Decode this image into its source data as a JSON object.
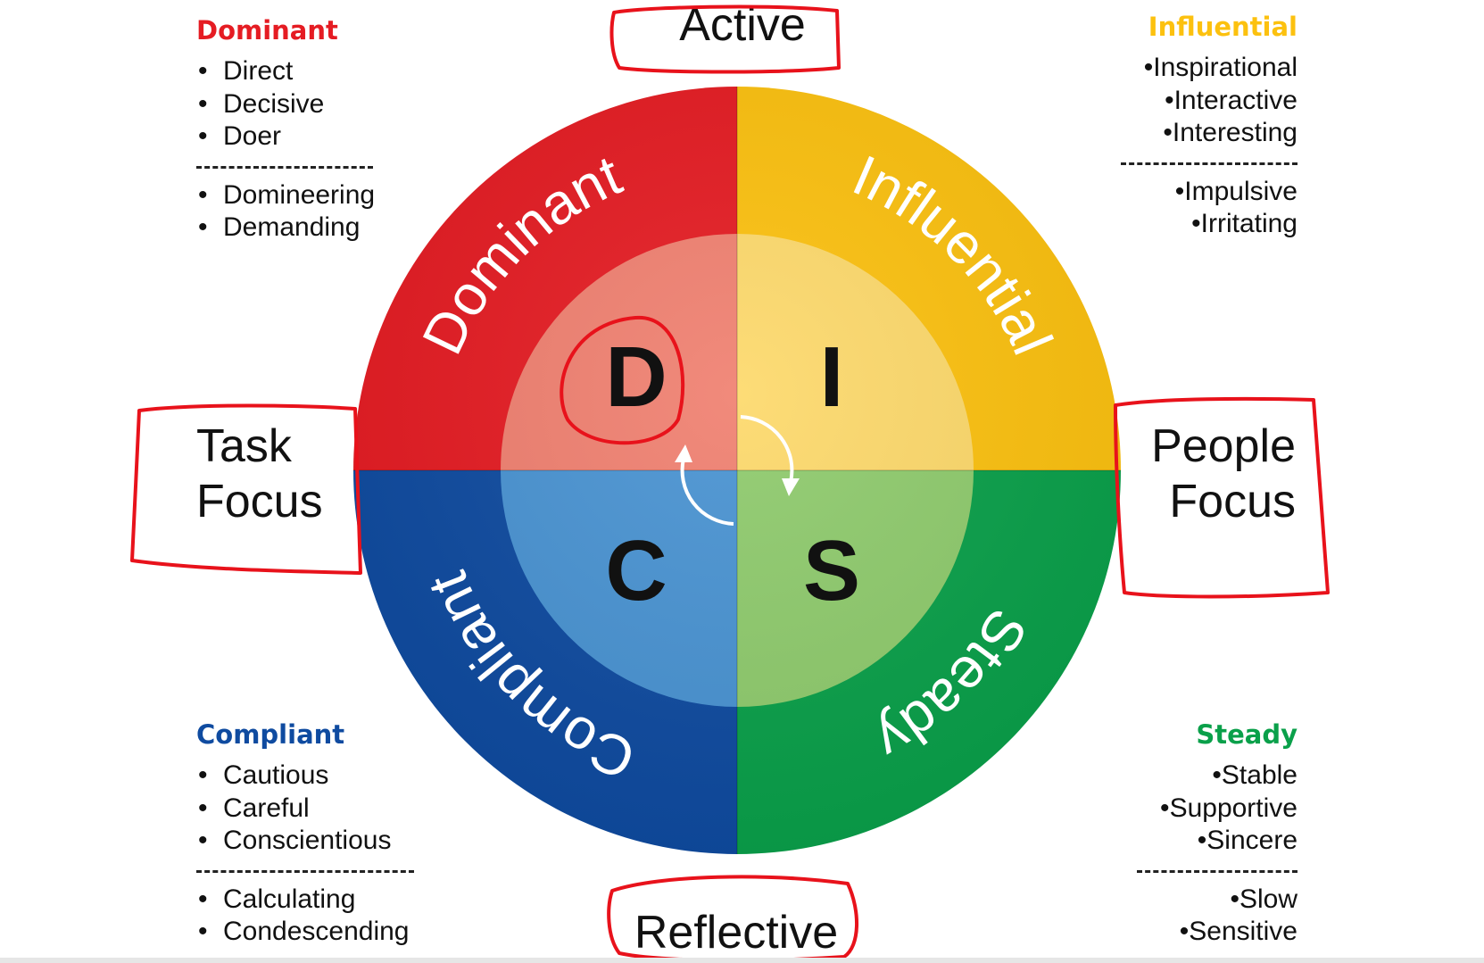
{
  "diagram": {
    "axis_labels": {
      "top": "Active",
      "bottom": "Reflective",
      "left": [
        "Task",
        "Focus"
      ],
      "right": [
        "People",
        "Focus"
      ]
    },
    "quadrants": [
      {
        "key": "d",
        "name": "Dominant",
        "letter": "D",
        "outer_color": "#e51c23",
        "inner_color": "#f08070"
      },
      {
        "key": "i",
        "name": "Influential",
        "letter": "I",
        "outer_color": "#fcc10f",
        "inner_color": "#fdd96b"
      },
      {
        "key": "s",
        "name": "Steady",
        "letter": "S",
        "outer_color": "#0aa04a",
        "inner_color": "#8fcb6d"
      },
      {
        "key": "c",
        "name": "Compliant",
        "letter": "C",
        "outer_color": "#0f4ba0",
        "inner_color": "#4993d2"
      }
    ],
    "panels": {
      "dominant": {
        "title": "Dominant",
        "color": "#e51c23",
        "strengths": [
          "Direct",
          "Decisive",
          "Doer"
        ],
        "weaknesses": [
          "Domineering",
          "Demanding"
        ]
      },
      "influential": {
        "title": "Influential",
        "color": "#fcc10f",
        "strengths": [
          "Inspirational",
          "Interactive",
          "Interesting"
        ],
        "weaknesses": [
          "Impulsive",
          "Irritating"
        ]
      },
      "compliant": {
        "title": "Compliant",
        "color": "#0f4ba0",
        "strengths": [
          "Cautious",
          "Careful",
          "Conscientious"
        ],
        "weaknesses": [
          "Calculating",
          "Condescending"
        ]
      },
      "steady": {
        "title": "Steady",
        "color": "#0aa04a",
        "strengths": [
          "Stable",
          "Supportive",
          "Sincere"
        ],
        "weaknesses": [
          "Slow",
          "Sensitive"
        ]
      }
    },
    "annotation_color": "#e8121b"
  }
}
